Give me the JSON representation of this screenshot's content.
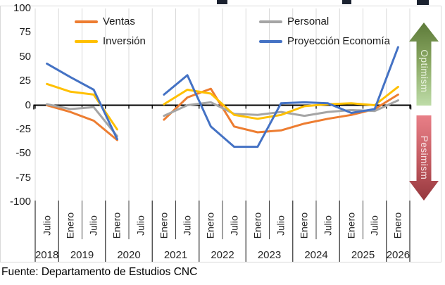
{
  "chart_data": {
    "type": "line",
    "title": "",
    "x_axis": {
      "months": [
        "Julio",
        "Enero",
        "Julio",
        "Enero",
        "Julio",
        "Enero",
        "Julio",
        "Enero",
        "Julio",
        "Enero",
        "Julio",
        "Enero",
        "Julio",
        "Enero",
        "Julio",
        "Enero"
      ],
      "years": [
        {
          "label": "2018",
          "semesters": 1
        },
        {
          "label": "2019",
          "semesters": 2
        },
        {
          "label": "2020",
          "semesters": 2
        },
        {
          "label": "2021",
          "semesters": 2
        },
        {
          "label": "2022",
          "semesters": 2
        },
        {
          "label": "2023",
          "semesters": 2
        },
        {
          "label": "2024",
          "semesters": 2
        },
        {
          "label": "2025",
          "semesters": 2
        },
        {
          "label": "2026",
          "semesters": 1
        }
      ]
    },
    "y_axis": {
      "ticks": [
        100,
        75,
        50,
        25,
        0,
        -25,
        -50,
        -75,
        -100
      ],
      "range": [
        -100,
        100
      ]
    },
    "series": [
      {
        "name": "Ventas",
        "color": "#ED7D31",
        "values": [
          0,
          -7,
          -16,
          -36,
          null,
          -15,
          8,
          17,
          -22,
          -28,
          -26,
          -19,
          -14,
          -10,
          -4,
          11
        ]
      },
      {
        "name": "Personal",
        "color": "#A5A5A5",
        "values": [
          1,
          -4,
          -2,
          -32,
          null,
          -11,
          0,
          3,
          -9,
          -10,
          -7,
          -11,
          -7,
          -5,
          -6,
          5
        ]
      },
      {
        "name": "Inversión",
        "color": "#FFC000",
        "values": [
          22,
          14,
          11,
          -25,
          null,
          1,
          16,
          12,
          -10,
          -14,
          -10,
          -1,
          1,
          2,
          0,
          19
        ]
      },
      {
        "name": "Proyección Economía",
        "color": "#4472C4",
        "values": [
          43,
          29,
          16,
          -35,
          null,
          11,
          31,
          -22,
          -43,
          -43,
          2,
          3,
          2,
          -8,
          -4,
          60
        ]
      }
    ],
    "grid": "vertical-semester-lines",
    "legend_position": "top-two-columns",
    "annotations": {
      "optimism": "Optimism",
      "pesimism": "Pesimism"
    },
    "source": "Fuente: Departamento de Estudios CNC",
    "colors": {
      "gridline": "#D9D9D9",
      "axis": "#000000",
      "optimism_arrow_top": "#5d7a39",
      "optimism_arrow_bottom": "#bedca8",
      "pesimism_arrow_top": "#e87f87",
      "pesimism_arrow_bottom": "#96383e"
    }
  }
}
